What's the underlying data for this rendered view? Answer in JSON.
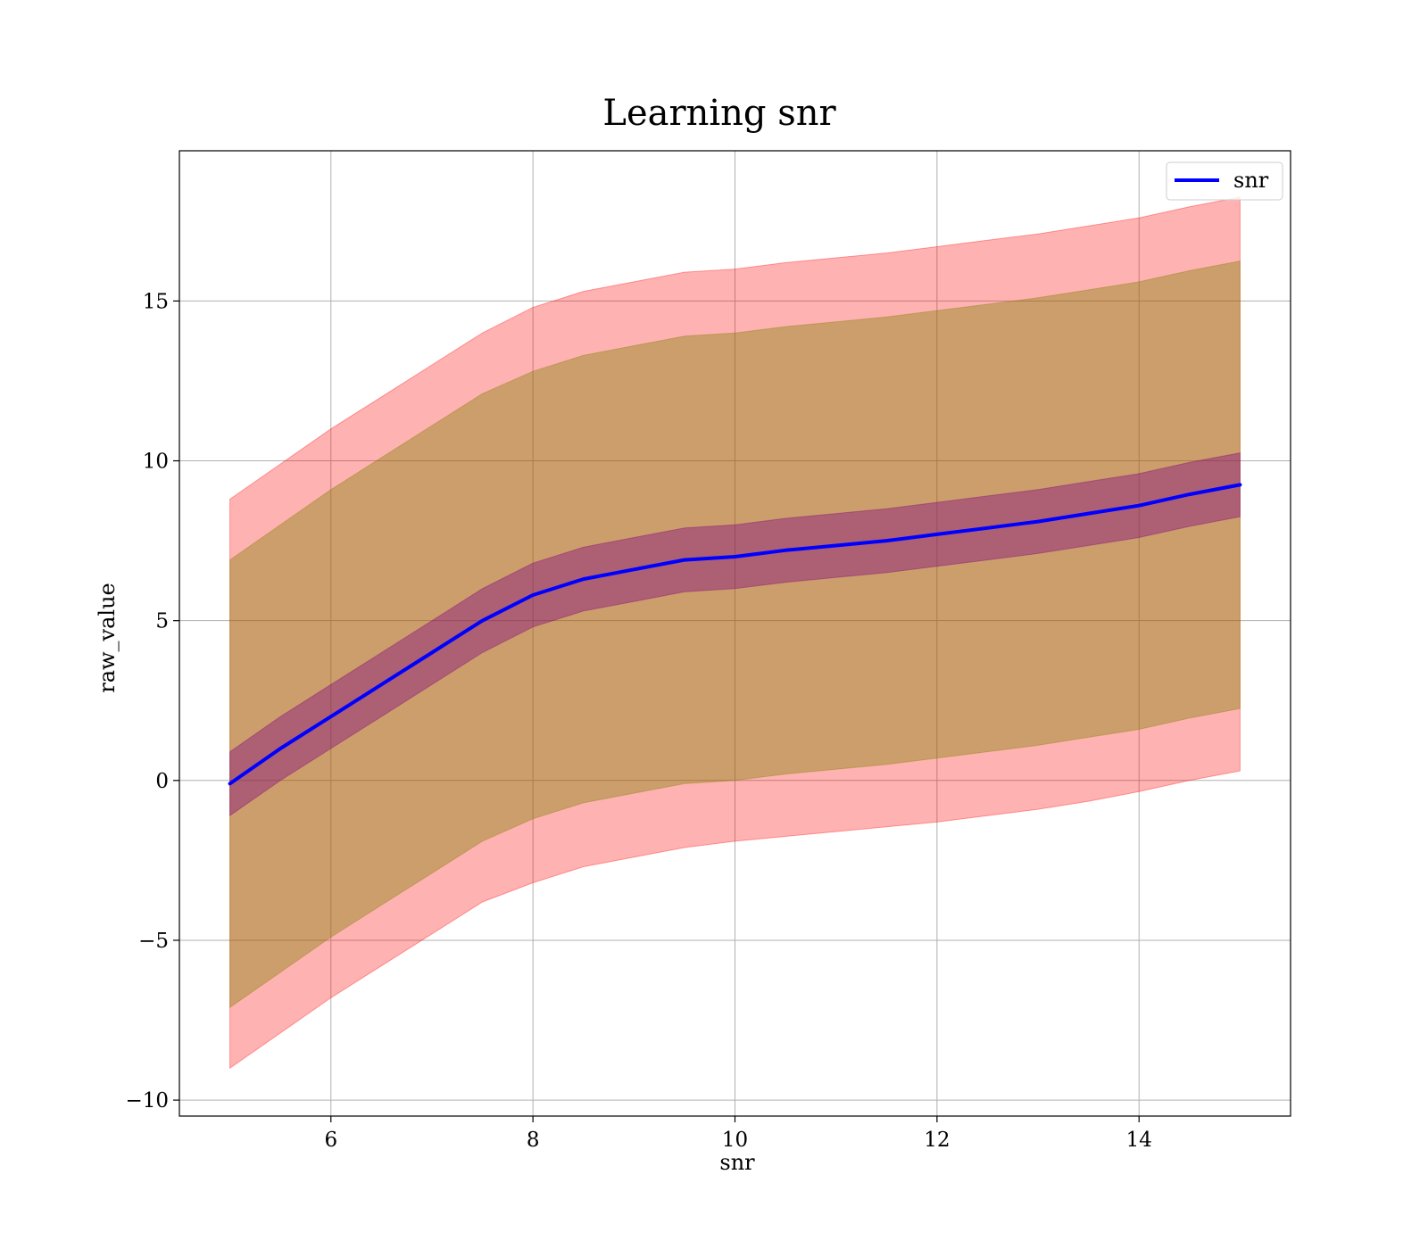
{
  "chart_data": {
    "type": "line",
    "title": "Learning snr",
    "xlabel": "snr",
    "ylabel": "raw_value",
    "xlim": [
      4.5,
      15.5
    ],
    "ylim": [
      -10.5,
      19.7
    ],
    "xticks": [
      6,
      8,
      10,
      12,
      14
    ],
    "yticks": [
      -10,
      -5,
      0,
      5,
      10,
      15
    ],
    "ytick_labels": [
      "−10",
      "−5",
      "0",
      "5",
      "10",
      "15"
    ],
    "grid": true,
    "legend": {
      "position": "top-right",
      "entries": [
        "snr"
      ]
    },
    "x": [
      5,
      5.5,
      6,
      6.5,
      7,
      7.5,
      8,
      8.5,
      9,
      9.5,
      10,
      10.5,
      11,
      11.5,
      12,
      12.5,
      13,
      13.5,
      14,
      14.5,
      15
    ],
    "series": [
      {
        "name": "snr",
        "color": "#0000ff",
        "values": [
          -0.1,
          1.0,
          2.0,
          3.0,
          4.0,
          5.0,
          5.8,
          6.3,
          6.6,
          6.9,
          7.0,
          7.2,
          7.35,
          7.5,
          7.7,
          7.9,
          8.1,
          8.35,
          8.6,
          8.95,
          9.25
        ]
      }
    ],
    "bands": [
      {
        "color": "#ff0000",
        "opacity": 0.3,
        "upper": [
          8.8,
          9.9,
          11.0,
          12.0,
          13.0,
          14.0,
          14.8,
          15.3,
          15.6,
          15.9,
          16.0,
          16.2,
          16.35,
          16.5,
          16.7,
          16.9,
          17.1,
          17.35,
          17.6,
          17.95,
          18.25
        ],
        "lower": [
          -9.0,
          -7.9,
          -6.8,
          -5.8,
          -4.8,
          -3.8,
          -3.2,
          -2.7,
          -2.4,
          -2.1,
          -1.9,
          -1.75,
          -1.6,
          -1.45,
          -1.3,
          -1.1,
          -0.9,
          -0.65,
          -0.35,
          0.0,
          0.3
        ]
      },
      {
        "color": "#808000",
        "opacity": 0.4,
        "upper": [
          6.9,
          8.0,
          9.1,
          10.1,
          11.1,
          12.1,
          12.8,
          13.3,
          13.6,
          13.9,
          14.0,
          14.2,
          14.35,
          14.5,
          14.7,
          14.9,
          15.1,
          15.35,
          15.6,
          15.95,
          16.25
        ],
        "lower": [
          -7.1,
          -6.0,
          -4.9,
          -3.9,
          -2.9,
          -1.9,
          -1.2,
          -0.7,
          -0.4,
          -0.1,
          0.0,
          0.2,
          0.35,
          0.5,
          0.7,
          0.9,
          1.1,
          1.35,
          1.6,
          1.95,
          2.25
        ]
      },
      {
        "color": "#800080",
        "opacity": 0.4,
        "upper": [
          0.9,
          2.0,
          3.0,
          4.0,
          5.0,
          6.0,
          6.8,
          7.3,
          7.6,
          7.9,
          8.0,
          8.2,
          8.35,
          8.5,
          8.7,
          8.9,
          9.1,
          9.35,
          9.6,
          9.95,
          10.25
        ],
        "lower": [
          -1.1,
          0.0,
          1.0,
          2.0,
          3.0,
          4.0,
          4.8,
          5.3,
          5.6,
          5.9,
          6.0,
          6.2,
          6.35,
          6.5,
          6.7,
          6.9,
          7.1,
          7.35,
          7.6,
          7.95,
          8.25
        ]
      }
    ]
  }
}
